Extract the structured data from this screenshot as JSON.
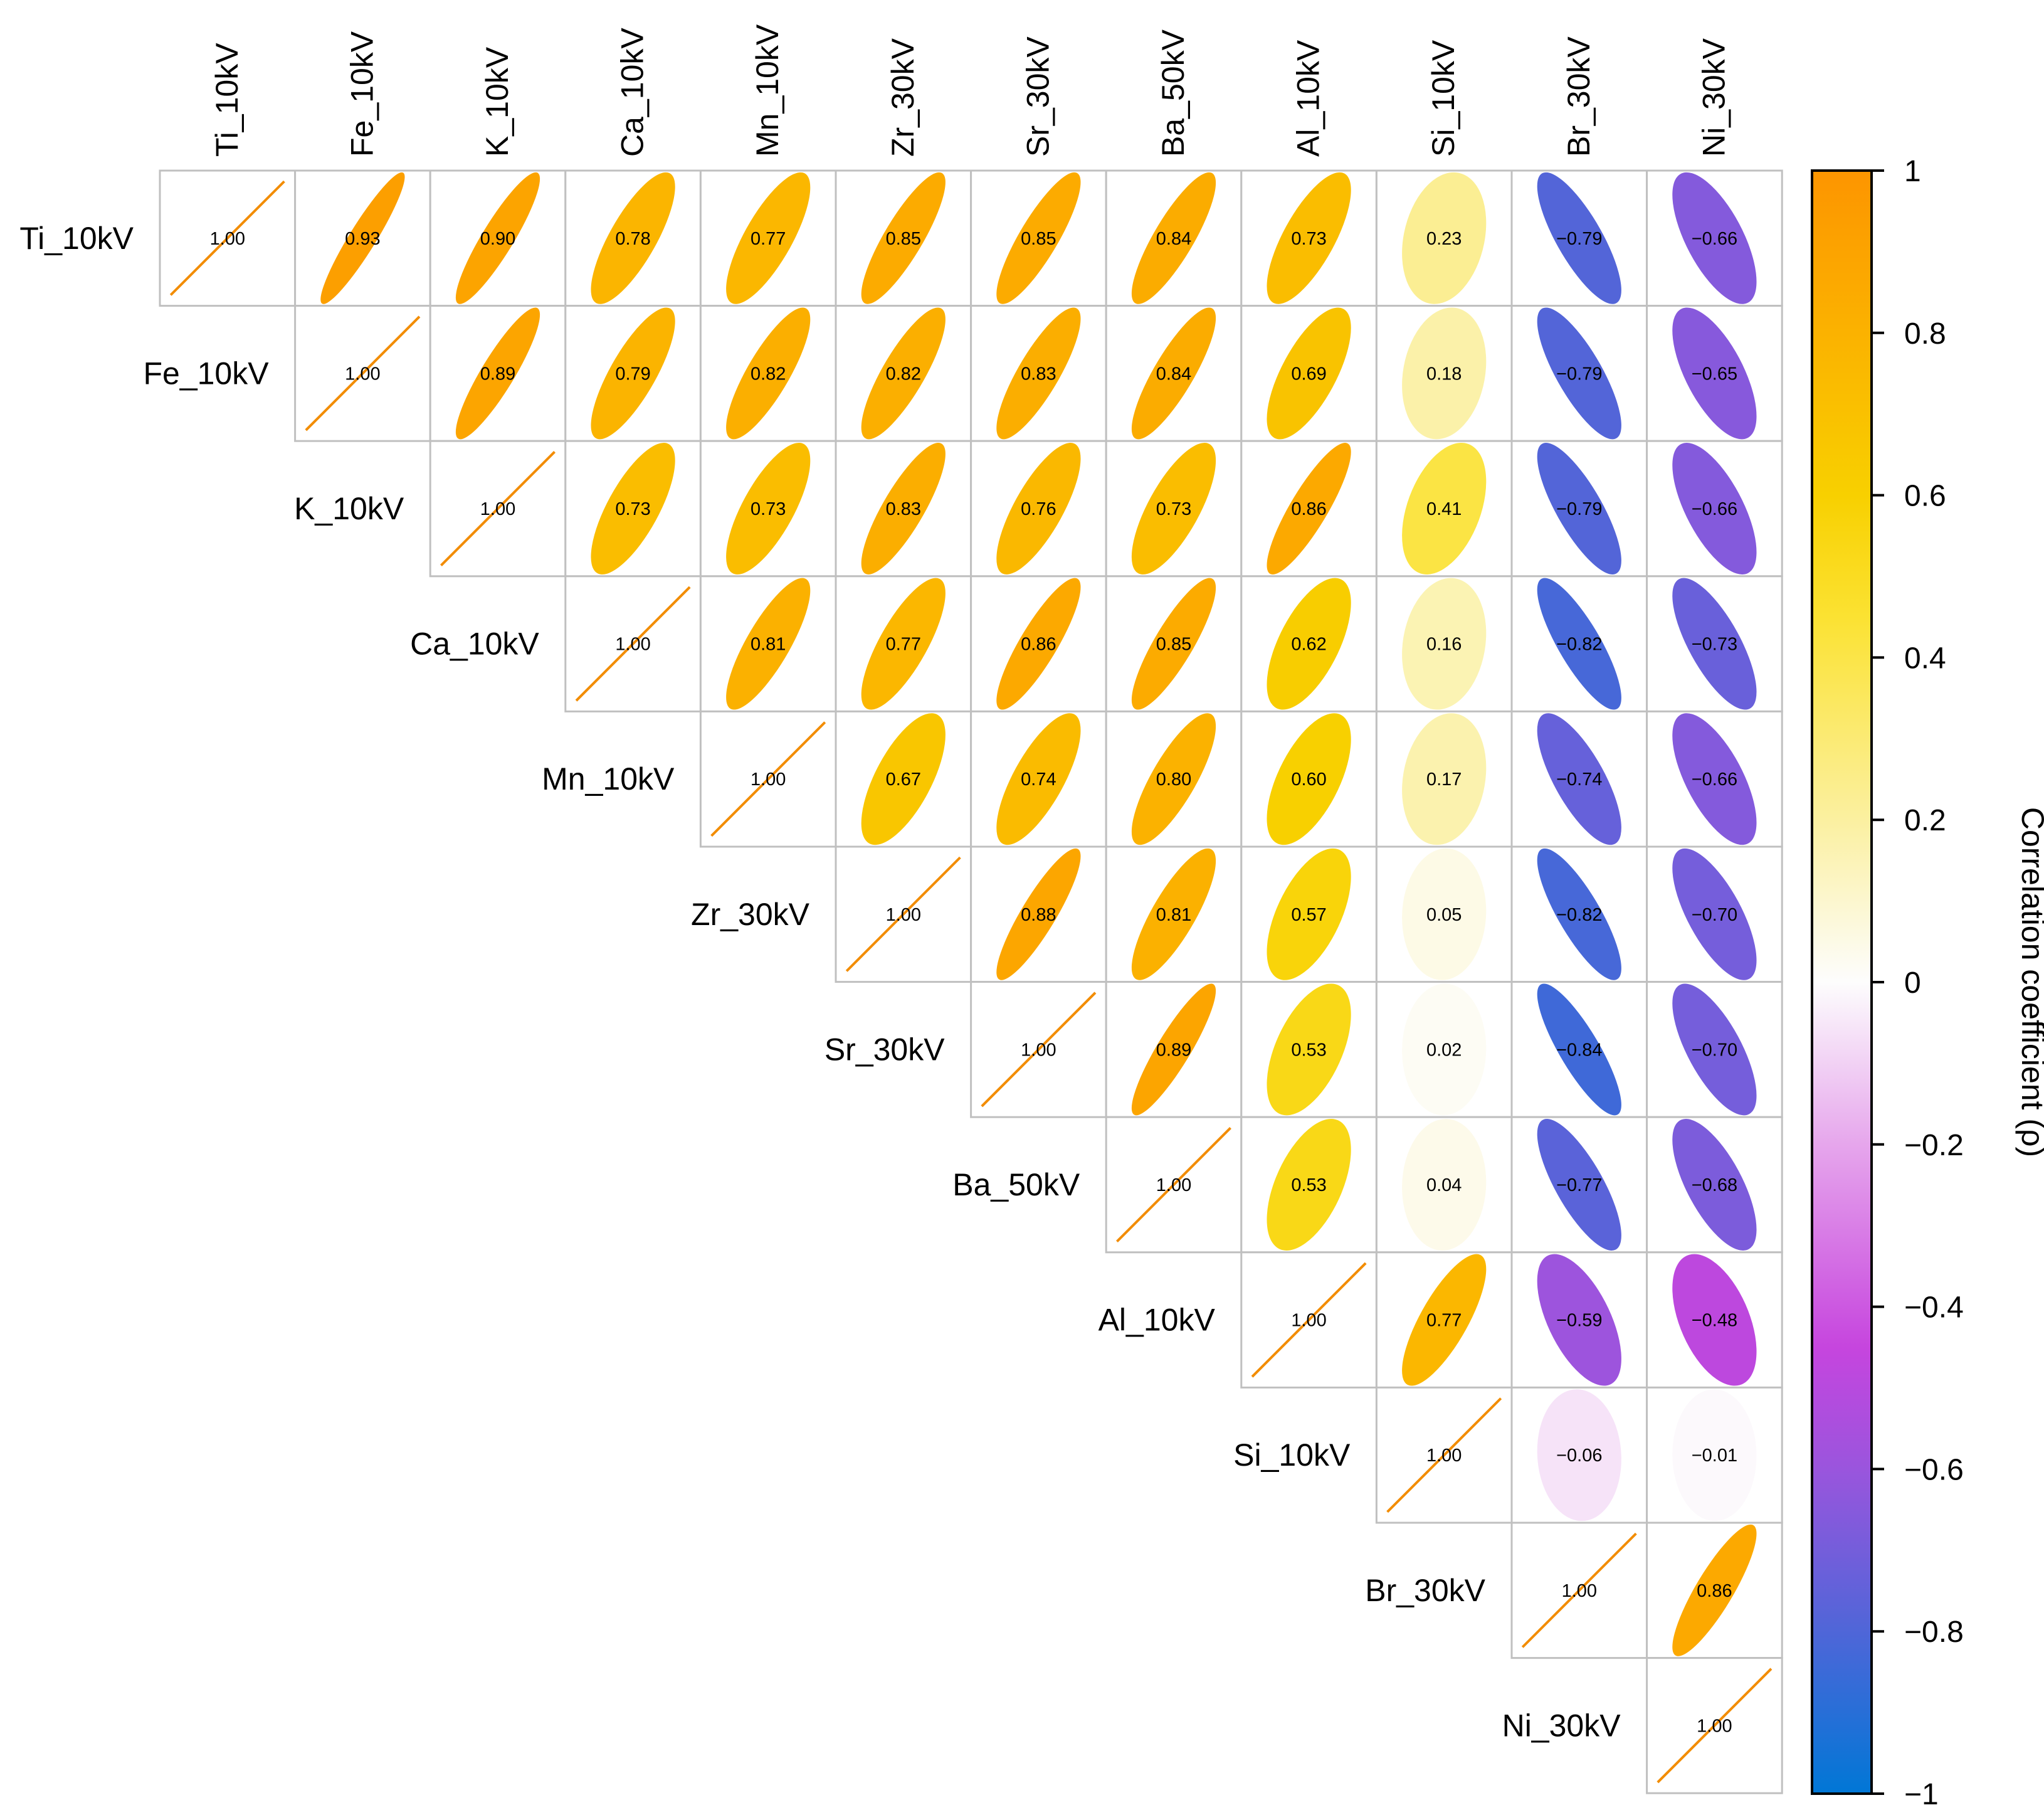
{
  "chart_data": {
    "type": "heatmap",
    "subtype": "correlation-ellipse-matrix (upper triangle)",
    "variables": [
      "Ti_10kV",
      "Fe_10kV",
      "K_10kV",
      "Ca_10kV",
      "Mn_10kV",
      "Zr_30kV",
      "Sr_30kV",
      "Ba_50kV",
      "Al_10kV",
      "Si_10kV",
      "Br_30kV",
      "Ni_30kV"
    ],
    "matrix": [
      [
        1.0,
        0.93,
        0.9,
        0.78,
        0.77,
        0.85,
        0.85,
        0.84,
        0.73,
        0.23,
        -0.79,
        -0.66
      ],
      [
        null,
        1.0,
        0.89,
        0.79,
        0.82,
        0.82,
        0.83,
        0.84,
        0.69,
        0.18,
        -0.79,
        -0.65
      ],
      [
        null,
        null,
        1.0,
        0.73,
        0.73,
        0.83,
        0.76,
        0.73,
        0.86,
        0.41,
        -0.79,
        -0.66
      ],
      [
        null,
        null,
        null,
        1.0,
        0.81,
        0.77,
        0.86,
        0.85,
        0.62,
        0.16,
        -0.82,
        -0.73
      ],
      [
        null,
        null,
        null,
        null,
        1.0,
        0.67,
        0.74,
        0.8,
        0.6,
        0.17,
        -0.74,
        -0.66
      ],
      [
        null,
        null,
        null,
        null,
        null,
        1.0,
        0.88,
        0.81,
        0.57,
        0.05,
        -0.82,
        -0.7
      ],
      [
        null,
        null,
        null,
        null,
        null,
        null,
        1.0,
        0.89,
        0.53,
        0.02,
        -0.84,
        -0.7
      ],
      [
        null,
        null,
        null,
        null,
        null,
        null,
        null,
        1.0,
        0.53,
        0.04,
        -0.77,
        -0.68
      ],
      [
        null,
        null,
        null,
        null,
        null,
        null,
        null,
        null,
        1.0,
        0.77,
        -0.59,
        -0.48
      ],
      [
        null,
        null,
        null,
        null,
        null,
        null,
        null,
        null,
        null,
        1.0,
        -0.06,
        -0.01
      ],
      [
        null,
        null,
        null,
        null,
        null,
        null,
        null,
        null,
        null,
        null,
        1.0,
        0.86
      ],
      [
        null,
        null,
        null,
        null,
        null,
        null,
        null,
        null,
        null,
        null,
        null,
        1.0
      ]
    ],
    "colorbar": {
      "title": "Correlation coefficient (ρ)",
      "range": [
        -1,
        1
      ],
      "ticks": [
        1,
        0.8,
        0.6,
        0.4,
        0.2,
        0,
        -0.2,
        -0.4,
        -0.6,
        -0.8,
        -1
      ],
      "tick_labels": [
        "1",
        "0.8",
        "0.6",
        "0.4",
        "0.2",
        "0",
        "−0.2",
        "−0.4",
        "−0.6",
        "−0.8",
        "−1"
      ],
      "placement": "right",
      "color_stops": [
        {
          "value": -1,
          "color": "#0077d6"
        },
        {
          "value": -0.8,
          "color": "#4f66d8"
        },
        {
          "value": -0.6,
          "color": "#9a55dd"
        },
        {
          "value": -0.45,
          "color": "#c645de"
        },
        {
          "value": -0.2,
          "color": "#e6a6ec"
        },
        {
          "value": 0,
          "color": "#fdfdfd"
        },
        {
          "value": 0.2,
          "color": "#fbf0a0"
        },
        {
          "value": 0.45,
          "color": "#fbe232"
        },
        {
          "value": 0.6,
          "color": "#f8d000"
        },
        {
          "value": 0.8,
          "color": "#fbb200"
        },
        {
          "value": 1,
          "color": "#fd9500"
        }
      ]
    },
    "diagonal_line_color": "#f28c00",
    "grid_color": "#c0c0c0",
    "value_format": "2 decimals"
  }
}
